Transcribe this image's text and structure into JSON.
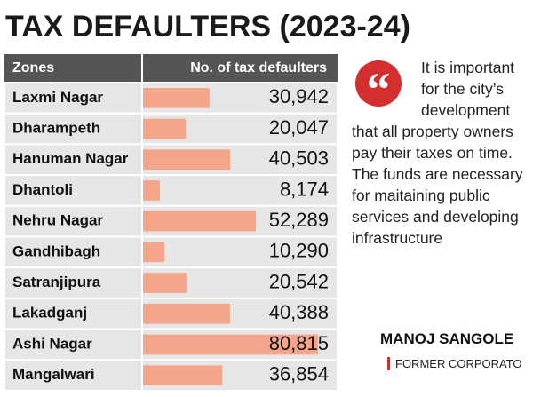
{
  "chart_data": {
    "type": "bar",
    "orientation": "horizontal",
    "title": "TAX DEFAULTERS (2023-24)",
    "category_header": "Zones",
    "value_header": "No. of tax defaulters",
    "categories": [
      "Laxmi Nagar",
      "Dharampeth",
      "Hanuman Nagar",
      "Dhantoli",
      "Nehru Nagar",
      "Gandhibagh",
      "Satranjipura",
      "Lakadganj",
      "Ashi Nagar",
      "Mangalwari"
    ],
    "values": [
      30942,
      20047,
      40503,
      8174,
      52289,
      10290,
      20542,
      40388,
      80815,
      36854
    ],
    "value_labels": [
      "30,942",
      "20,047",
      "40,503",
      "8,174",
      "52,289",
      "10,290",
      "20,542",
      "40,388",
      "80,815",
      "36,854"
    ],
    "color": "#f4a58a"
  },
  "quote": {
    "text": "It is important for the city’s development that all property owners pay their taxes on time. The funds are necessary for maitaining public services and developing infrastructure",
    "author": "MANOJ SANGOLE",
    "role": "FORMER CORPORATO"
  }
}
